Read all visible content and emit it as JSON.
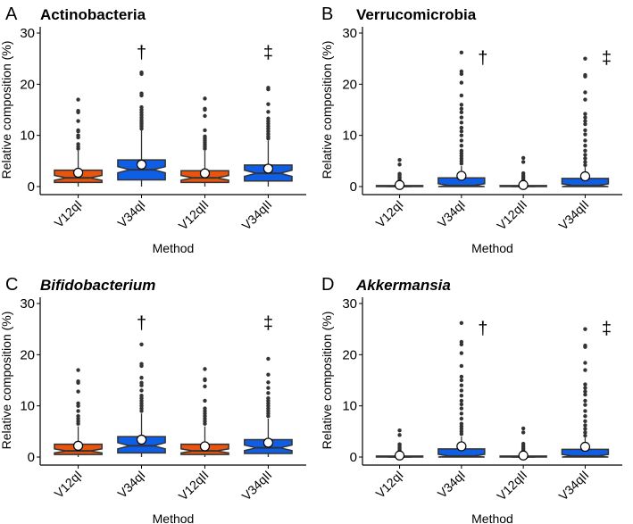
{
  "colors": {
    "V12qI": "#E8550F",
    "V34qI": "#0F5FE6",
    "V12qII": "#E8550F",
    "V34qII": "#0F5FE6",
    "outline": "#333333",
    "outlier": "#333333"
  },
  "chart_data": [
    {
      "type": "box",
      "panel_letter": "A",
      "title": "Actinobacteria",
      "italic": false,
      "xlabel": "Method",
      "ylabel": "Relative composition (%)",
      "ylim": [
        0,
        30
      ],
      "yticks": [
        0,
        10,
        20,
        30
      ],
      "categories": [
        "V12qI",
        "V34qI",
        "V12qII",
        "V34qII"
      ],
      "boxes": [
        {
          "q1": 0.8,
          "median": 1.7,
          "q3": 3.2,
          "whisker_low": 0,
          "whisker_high": 7,
          "mean": 2.7,
          "outliers": [
            7.4,
            7.8,
            8.3,
            9.6,
            10,
            10.8,
            11,
            12.8,
            14.5,
            14.8,
            17
          ],
          "annotation": ""
        },
        {
          "q1": 1.3,
          "median": 3.3,
          "q3": 5.2,
          "whisker_low": 0,
          "whisker_high": 11,
          "mean": 4.3,
          "outliers": [
            11.3,
            11.8,
            12.2,
            12.6,
            13,
            13.5,
            14,
            14.5,
            15,
            15.5,
            17.8,
            18.2,
            22,
            22.3
          ],
          "annotation": "†"
        },
        {
          "q1": 0.8,
          "median": 1.7,
          "q3": 3.1,
          "whisker_low": 0,
          "whisker_high": 7,
          "mean": 2.6,
          "outliers": [
            7.4,
            7.8,
            8.2,
            8.6,
            9,
            9.4,
            9.8,
            11,
            13.8,
            15,
            15.2,
            17.2
          ],
          "annotation": ""
        },
        {
          "q1": 1.1,
          "median": 2.6,
          "q3": 4.2,
          "whisker_low": 0,
          "whisker_high": 9,
          "mean": 3.5,
          "outliers": [
            9.4,
            9.8,
            10.3,
            10.8,
            11.3,
            11.8,
            12.3,
            12.8,
            13.3,
            14.6,
            16.1,
            19,
            19.3
          ],
          "annotation": "‡"
        }
      ]
    },
    {
      "type": "box",
      "panel_letter": "B",
      "title": "Verrucomicrobia",
      "italic": false,
      "xlabel": "Method",
      "ylabel": "Relative composition (%)",
      "ylim": [
        0,
        30
      ],
      "yticks": [
        0,
        10,
        20,
        30
      ],
      "categories": [
        "V12qI",
        "V34qI",
        "V12qII",
        "V34qII"
      ],
      "boxes": [
        {
          "q1": 0,
          "median": 0.05,
          "q3": 0.2,
          "whisker_low": 0,
          "whisker_high": 0.5,
          "mean": 0.3,
          "outliers": [
            0.7,
            1,
            1.3,
            1.6,
            1.9,
            2.3,
            2.5,
            4.3,
            5.2
          ],
          "annotation": ""
        },
        {
          "q1": 0,
          "median": 0.2,
          "q3": 1.7,
          "whisker_low": 0,
          "whisker_high": 4,
          "mean": 2.1,
          "outliers": [
            4.5,
            5,
            5.5,
            6,
            6.5,
            7,
            8,
            9,
            10,
            10.8,
            11.5,
            12.5,
            13.5,
            14.5,
            15.2,
            16,
            17.8,
            20.3,
            22,
            22.5,
            26.2
          ],
          "annotation": "†"
        },
        {
          "q1": 0,
          "median": 0.05,
          "q3": 0.2,
          "whisker_low": 0,
          "whisker_high": 0.5,
          "mean": 0.3,
          "outliers": [
            0.7,
            1,
            1.3,
            1.6,
            1.9,
            2.2,
            2.6,
            4.8,
            5.6
          ],
          "annotation": ""
        },
        {
          "q1": 0,
          "median": 0.2,
          "q3": 1.6,
          "whisker_low": 0,
          "whisker_high": 3.8,
          "mean": 2.0,
          "outliers": [
            4.2,
            4.8,
            5.5,
            6.2,
            7,
            8,
            9,
            10.2,
            11,
            12.2,
            12.8,
            13.5,
            14.2,
            17,
            18.4,
            21.5,
            21.8,
            25
          ],
          "annotation": "‡"
        }
      ]
    },
    {
      "type": "box",
      "panel_letter": "C",
      "title": "Bifidobacterium",
      "italic": true,
      "xlabel": "Method",
      "ylabel": "Relative composition (%)",
      "ylim": [
        0,
        30
      ],
      "yticks": [
        0,
        10,
        20,
        30
      ],
      "categories": [
        "V12qI",
        "V34qI",
        "V12qII",
        "V34qII"
      ],
      "boxes": [
        {
          "q1": 0.5,
          "median": 1.2,
          "q3": 2.5,
          "whisker_low": 0,
          "whisker_high": 6,
          "mean": 2.2,
          "outliers": [
            6.5,
            7,
            7.5,
            8,
            9,
            10,
            10.5,
            12.8,
            14.5,
            14.8,
            17
          ],
          "annotation": ""
        },
        {
          "q1": 0.8,
          "median": 2.2,
          "q3": 4.0,
          "whisker_low": 0,
          "whisker_high": 8.5,
          "mean": 3.4,
          "outliers": [
            9,
            9.5,
            10,
            10.5,
            11,
            11.5,
            12,
            13,
            14,
            14.5,
            15.5,
            17.8,
            18.2,
            22
          ],
          "annotation": "†"
        },
        {
          "q1": 0.5,
          "median": 1.2,
          "q3": 2.5,
          "whisker_low": 0,
          "whisker_high": 6,
          "mean": 2.1,
          "outliers": [
            6.5,
            7,
            7.5,
            8,
            8.5,
            9,
            9.5,
            11,
            13.8,
            15,
            15.2,
            17.2
          ],
          "annotation": ""
        },
        {
          "q1": 0.7,
          "median": 1.8,
          "q3": 3.4,
          "whisker_low": 0,
          "whisker_high": 7.5,
          "mean": 2.8,
          "outliers": [
            8,
            8.5,
            9,
            9.5,
            10,
            10.5,
            11,
            11.5,
            12.5,
            13.5,
            14.6,
            16.1,
            19.2
          ],
          "annotation": "‡"
        }
      ]
    },
    {
      "type": "box",
      "panel_letter": "D",
      "title": "Akkermansia",
      "italic": true,
      "xlabel": "Method",
      "ylabel": "Relative composition (%)",
      "ylim": [
        0,
        30
      ],
      "yticks": [
        0,
        10,
        20,
        30
      ],
      "categories": [
        "V12qI",
        "V34qI",
        "V12qII",
        "V34qII"
      ],
      "boxes": [
        {
          "q1": 0,
          "median": 0.05,
          "q3": 0.2,
          "whisker_low": 0,
          "whisker_high": 0.5,
          "mean": 0.3,
          "outliers": [
            0.7,
            1,
            1.3,
            1.6,
            1.9,
            2.3,
            2.5,
            4.3,
            5.2
          ],
          "annotation": ""
        },
        {
          "q1": 0,
          "median": 0.2,
          "q3": 1.6,
          "whisker_low": 0,
          "whisker_high": 4,
          "mean": 2.1,
          "outliers": [
            4.5,
            5,
            5.5,
            6,
            6.5,
            7.5,
            8.5,
            9.5,
            10.3,
            11,
            12,
            13,
            14,
            15,
            15.7,
            17.8,
            20.3,
            22,
            22.5,
            26.2
          ],
          "annotation": "†"
        },
        {
          "q1": 0,
          "median": 0.05,
          "q3": 0.2,
          "whisker_low": 0,
          "whisker_high": 0.5,
          "mean": 0.3,
          "outliers": [
            0.7,
            1,
            1.3,
            1.6,
            1.9,
            2.2,
            2.6,
            4.8,
            5.6
          ],
          "annotation": ""
        },
        {
          "q1": 0,
          "median": 0.2,
          "q3": 1.5,
          "whisker_low": 0,
          "whisker_high": 3.8,
          "mean": 2.0,
          "outliers": [
            4.2,
            4.8,
            5.5,
            6.2,
            7,
            8,
            9,
            10.2,
            11,
            12.2,
            12.8,
            13.5,
            14.2,
            17,
            18.4,
            21.5,
            21.8,
            25
          ],
          "annotation": "‡"
        }
      ]
    }
  ]
}
